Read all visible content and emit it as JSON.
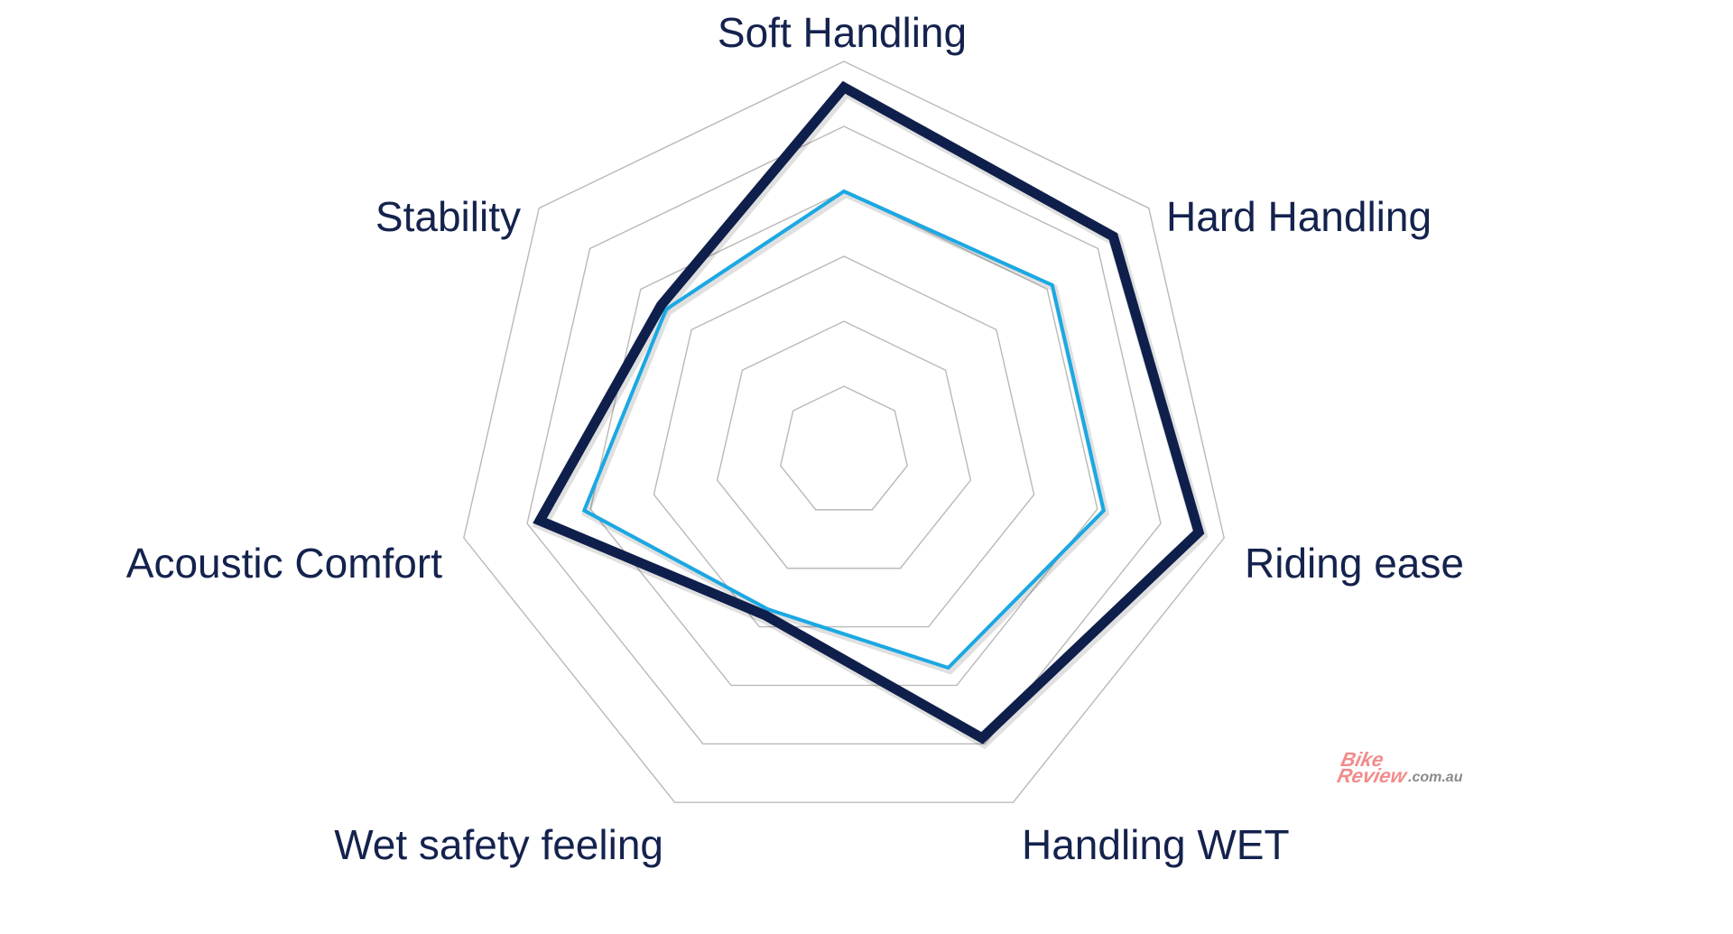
{
  "chart_data": {
    "type": "radar",
    "title": "",
    "axes": [
      "Soft Handling",
      "Hard Handling",
      "Riding ease",
      "Handling WET",
      "Wet safety feeling",
      "Acoustic Comfort",
      "Stability"
    ],
    "scale": {
      "min": 0,
      "max": 6,
      "rings": 6
    },
    "grid": true,
    "legend": "none",
    "series": [
      {
        "values": [
          5.6,
          5.3,
          5.6,
          4.9,
          2.8,
          4.8,
          3.6
        ],
        "color": "#0f1f4b"
      },
      {
        "values": [
          4.0,
          4.1,
          4.1,
          3.7,
          2.7,
          4.1,
          3.5
        ],
        "color": "#1ba8e3"
      }
    ]
  },
  "watermark": {
    "brand_line1": "Bike",
    "brand_line2": "Review",
    "domain": ".com.au",
    "color": "#f28b8b"
  }
}
